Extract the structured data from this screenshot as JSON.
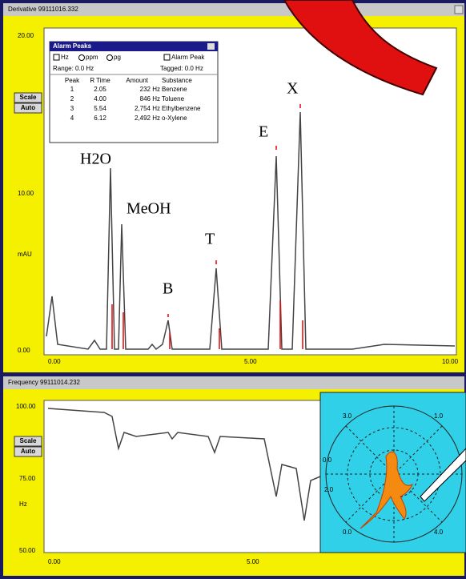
{
  "top_window": {
    "title": "Derivative   99111016.332",
    "buttons": [
      "Scale",
      "Auto"
    ],
    "y_labels": [
      "20.00",
      "10.00",
      "mAU",
      "0.00"
    ],
    "x_labels": [
      "0.00",
      "5.00",
      "10.00"
    ],
    "peak_labels": [
      "H2O",
      "MeOH",
      "B",
      "T",
      "E",
      "X"
    ]
  },
  "alarm_panel": {
    "title": "Alarm Peaks",
    "options": [
      "Hz",
      "ppm",
      "pg",
      "Alarm Peak"
    ],
    "range": "Range: 0.0 Hz",
    "tagged": "Tagged: 0.0 Hz",
    "table": {
      "headers": [
        "Peak",
        "R Time",
        "Amount",
        "Substance"
      ],
      "rows": [
        [
          "1",
          "2.05",
          "232 Hz",
          "Benzene"
        ],
        [
          "2",
          "4.00",
          "846 Hz",
          "Toluene"
        ],
        [
          "3",
          "5.54",
          "2,754 Hz",
          "Ethylbenzene"
        ],
        [
          "4",
          "6.12",
          "2,492 Hz",
          "o-Xylene"
        ]
      ]
    }
  },
  "bottom_window": {
    "title": "Frequency   99111014.232",
    "buttons": [
      "Scale",
      "Auto"
    ],
    "y_labels": [
      "100.00",
      "75.00",
      "Hz",
      "50.00"
    ],
    "x_labels": [
      "0.00",
      "5.00"
    ],
    "polar_labels": [
      "3.0",
      "1.0",
      "0.0",
      "2.0",
      "0.0",
      "4.0"
    ]
  }
}
